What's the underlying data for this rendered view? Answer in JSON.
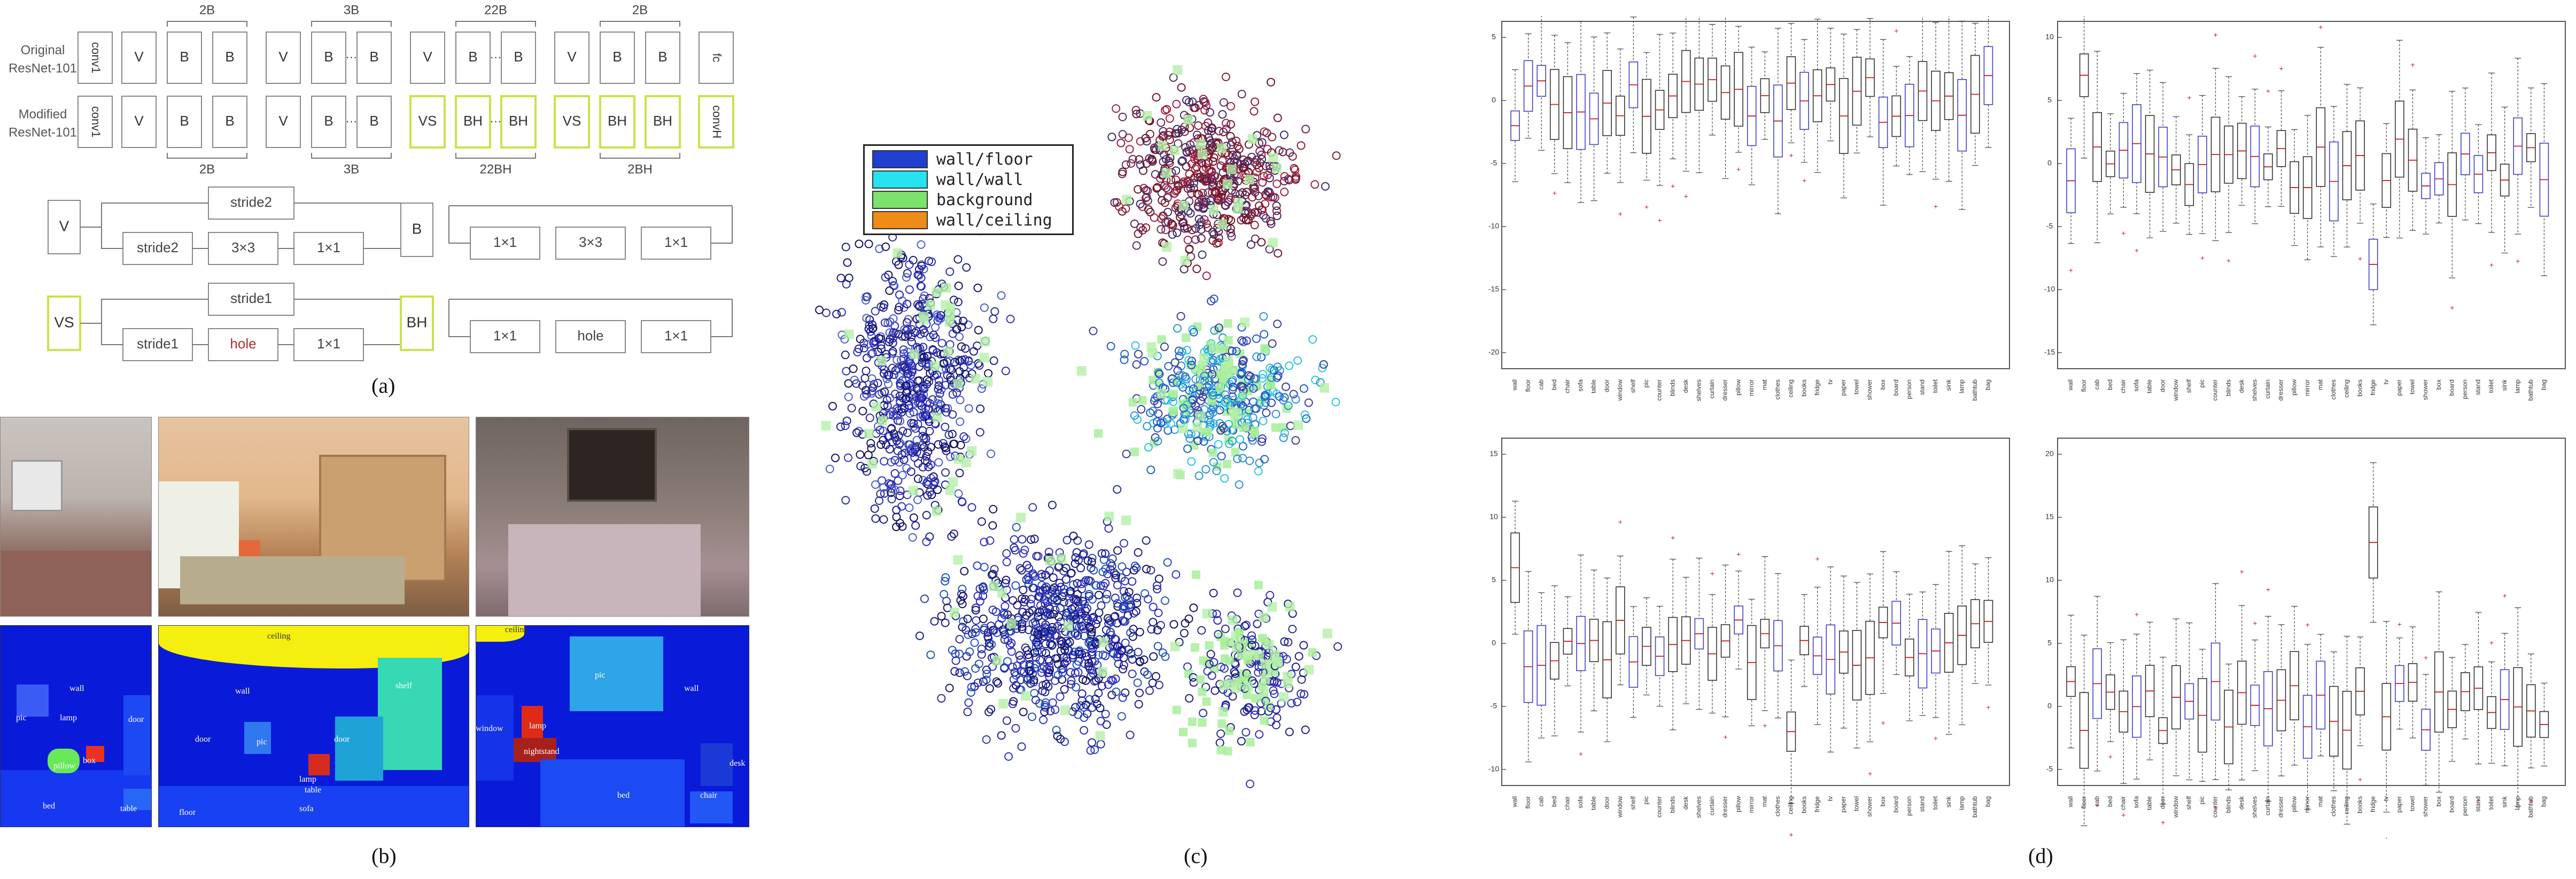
{
  "panel_a": {
    "row_labels": [
      "Original\nResNet-101",
      "Modified\nResNet-101"
    ],
    "top_row": [
      "conv1",
      "V",
      "B",
      "B",
      "V",
      "B",
      "B",
      "V",
      "B",
      "B",
      "V",
      "B",
      "B",
      "fc"
    ],
    "bottom_row": [
      "conv1",
      "V",
      "B",
      "B",
      "V",
      "B",
      "B",
      "VS",
      "BH",
      "BH",
      "VS",
      "BH",
      "BH",
      "convH"
    ],
    "top_braces": [
      "2B",
      "3B",
      "22B",
      "2B"
    ],
    "bottom_braces": [
      "2B",
      "3B",
      "22BH",
      "2BH"
    ],
    "dots": "···",
    "v_block": {
      "left": "V",
      "skip": "stride2",
      "path": [
        "stride2",
        "3×3",
        "1×1"
      ]
    },
    "b_block": {
      "left": "B",
      "path": [
        "1×1",
        "3×3",
        "1×1"
      ]
    },
    "vs_block": {
      "left": "VS",
      "skip": "stride1",
      "path": [
        "stride1",
        "hole",
        "1×1"
      ]
    },
    "bh_block": {
      "left": "BH",
      "path": [
        "1×1",
        "hole",
        "1×1"
      ]
    },
    "caption": "(a)"
  },
  "panel_b": {
    "labels_1": [
      "wall",
      "pic",
      "lamp",
      "door",
      "pillow",
      "box",
      "bed",
      "table"
    ],
    "labels_2": [
      "ceiling",
      "wall",
      "shelf",
      "door",
      "pic",
      "door",
      "lamp",
      "table",
      "floor",
      "sofa"
    ],
    "labels_3": [
      "ceiling",
      "pic",
      "wall",
      "window",
      "lamp",
      "nightstand",
      "bed",
      "desk",
      "chair"
    ],
    "caption": "(b)"
  },
  "panel_c": {
    "legend": [
      {
        "label": "wall/floor",
        "color": "#1f3fd0"
      },
      {
        "label": "wall/wall",
        "color": "#27e3f0"
      },
      {
        "label": "background",
        "color": "#7be36b"
      },
      {
        "label": "wall/ceiling",
        "color": "#f08a18"
      }
    ],
    "caption": "(c)"
  },
  "panel_d": {
    "subplots": [
      {
        "yticks": [
          "5",
          "0",
          "-5",
          "-10",
          "-15",
          "-20"
        ],
        "ylim": [
          -20,
          5
        ]
      },
      {
        "yticks": [
          "10",
          "5",
          "0",
          "-5",
          "-10",
          "-15"
        ],
        "ylim": [
          -15,
          10
        ]
      },
      {
        "yticks": [
          "15",
          "10",
          "5",
          "0",
          "-5",
          "-10"
        ],
        "ylim": [
          -10,
          15
        ]
      },
      {
        "yticks": [
          "20",
          "15",
          "10",
          "5",
          "0",
          "-5"
        ],
        "ylim": [
          -5,
          20
        ]
      }
    ],
    "categories": [
      "wall",
      "floor",
      "cab",
      "bed",
      "chair",
      "sofa",
      "table",
      "door",
      "window",
      "shelf",
      "pic",
      "counter",
      "blinds",
      "desk",
      "shelves",
      "curtain",
      "dresser",
      "pillow",
      "mirror",
      "mat",
      "clothes",
      "ceiling",
      "books",
      "fridge",
      "tv",
      "paper",
      "towel",
      "shower",
      "box",
      "board",
      "person",
      "stand",
      "toilet",
      "sink",
      "lamp",
      "bathtub",
      "bag"
    ],
    "caption": "(d)"
  }
}
